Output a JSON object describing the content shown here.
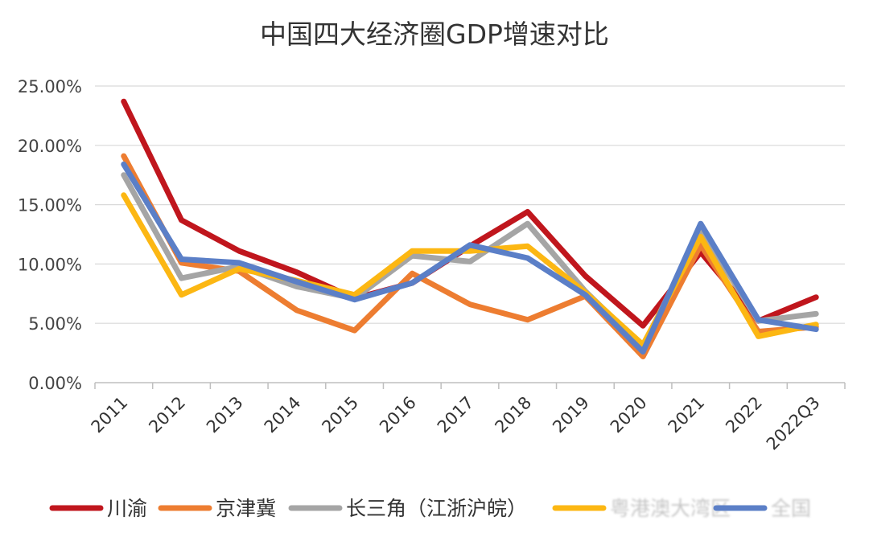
{
  "chart_data": {
    "type": "line",
    "title": "中国四大经济圈GDP增速对比",
    "xlabel": "",
    "ylabel": "",
    "categories": [
      "2011",
      "2012",
      "2013",
      "2014",
      "2015",
      "2016",
      "2017",
      "2018",
      "2019",
      "2020",
      "2021",
      "2022",
      "2022Q3"
    ],
    "ylim": [
      0,
      25
    ],
    "yticks": [
      0,
      5,
      10,
      15,
      20,
      25
    ],
    "ytick_labels": [
      "0.00%",
      "5.00%",
      "10.00%",
      "15.00%",
      "20.00%",
      "25.00%"
    ],
    "grid": true,
    "legend_position": "bottom",
    "series": [
      {
        "name": "川渝",
        "color": "#c0161d",
        "values": [
          23.7,
          13.7,
          11.1,
          9.3,
          7.1,
          8.4,
          11.5,
          14.4,
          9.0,
          4.8,
          11.0,
          5.2,
          7.2
        ]
      },
      {
        "name": "京津冀",
        "color": "#ed7d31",
        "values": [
          19.1,
          10.1,
          9.4,
          6.1,
          4.4,
          9.2,
          6.6,
          5.3,
          7.3,
          2.2,
          11.6,
          4.3,
          4.7
        ]
      },
      {
        "name": "长三角（江浙沪皖）",
        "color": "#a5a5a5",
        "values": [
          17.5,
          8.8,
          9.8,
          8.1,
          7.1,
          10.7,
          10.2,
          13.4,
          7.7,
          3.0,
          12.9,
          5.2,
          5.8
        ]
      },
      {
        "name": "粤港澳大湾区",
        "color": "#fcb713",
        "values": [
          15.8,
          7.4,
          9.6,
          8.6,
          7.4,
          11.1,
          11.1,
          11.5,
          7.6,
          3.2,
          12.3,
          3.9,
          4.9
        ]
      },
      {
        "name": "全国",
        "color": "#5b7fc7",
        "values": [
          18.4,
          10.4,
          10.1,
          8.5,
          7.0,
          8.4,
          11.6,
          10.5,
          7.4,
          2.6,
          13.4,
          5.3,
          4.5
        ]
      }
    ]
  }
}
